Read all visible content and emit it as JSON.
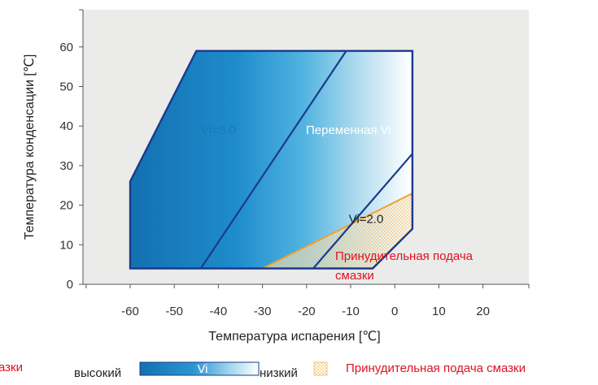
{
  "chart_data": {
    "type": "area",
    "title": "",
    "xlabel": "Температура испарения [℃]",
    "ylabel": "Температура конденсации [℃]",
    "xlim": [
      -70,
      30
    ],
    "ylim": [
      0,
      70
    ],
    "x_ticks": [
      "-60",
      "-50",
      "-40",
      "-30",
      "-20",
      "-10",
      "0",
      "10",
      "20"
    ],
    "y_ticks": [
      "0",
      "10",
      "20",
      "30",
      "40",
      "50",
      "60"
    ],
    "grid": false,
    "envelope": [
      [
        -60,
        4
      ],
      [
        -60,
        26
      ],
      [
        -45,
        59
      ],
      [
        4,
        59
      ],
      [
        4,
        14
      ],
      [
        -5,
        4
      ]
    ],
    "regions": [
      {
        "label": "Vi=5.0",
        "label_pos": [
          -40,
          38
        ],
        "color": "#1a78b8",
        "polygon": [
          [
            -60,
            4
          ],
          [
            -60,
            26
          ],
          [
            -45,
            59
          ],
          [
            -11,
            59
          ],
          [
            -44,
            4
          ]
        ]
      },
      {
        "label": "Переменная Vi",
        "label_pos": [
          -10,
          38
        ],
        "color": "#ffffff",
        "polygon": [
          [
            -44,
            4
          ],
          [
            -11,
            59
          ],
          [
            4,
            59
          ],
          [
            4,
            33
          ],
          [
            -18.5,
            4
          ]
        ]
      },
      {
        "label": "Vi=2.0",
        "label_pos": [
          -6.5,
          15.5
        ],
        "color": "#222222",
        "polygon": [
          [
            -18.5,
            4
          ],
          [
            4,
            33
          ],
          [
            4,
            14
          ],
          [
            -5,
            4
          ]
        ]
      }
    ],
    "forced_lubrication": {
      "label": "Принудительная подача смазки",
      "label_line1": "Принудительная подача",
      "label_line2": "смазки",
      "label_color": "#e01020",
      "line_color": "#f0a030",
      "polygon": [
        [
          -30,
          4
        ],
        [
          4,
          23
        ],
        [
          4,
          14
        ],
        [
          -5,
          4
        ]
      ]
    },
    "legend": {
      "placement": "bottom",
      "high_label": "высокий",
      "vi_label": "Vi",
      "low_label": "низкий",
      "lube_label": "Принудительная подача смазки",
      "clipped_left_text": "азки"
    }
  }
}
